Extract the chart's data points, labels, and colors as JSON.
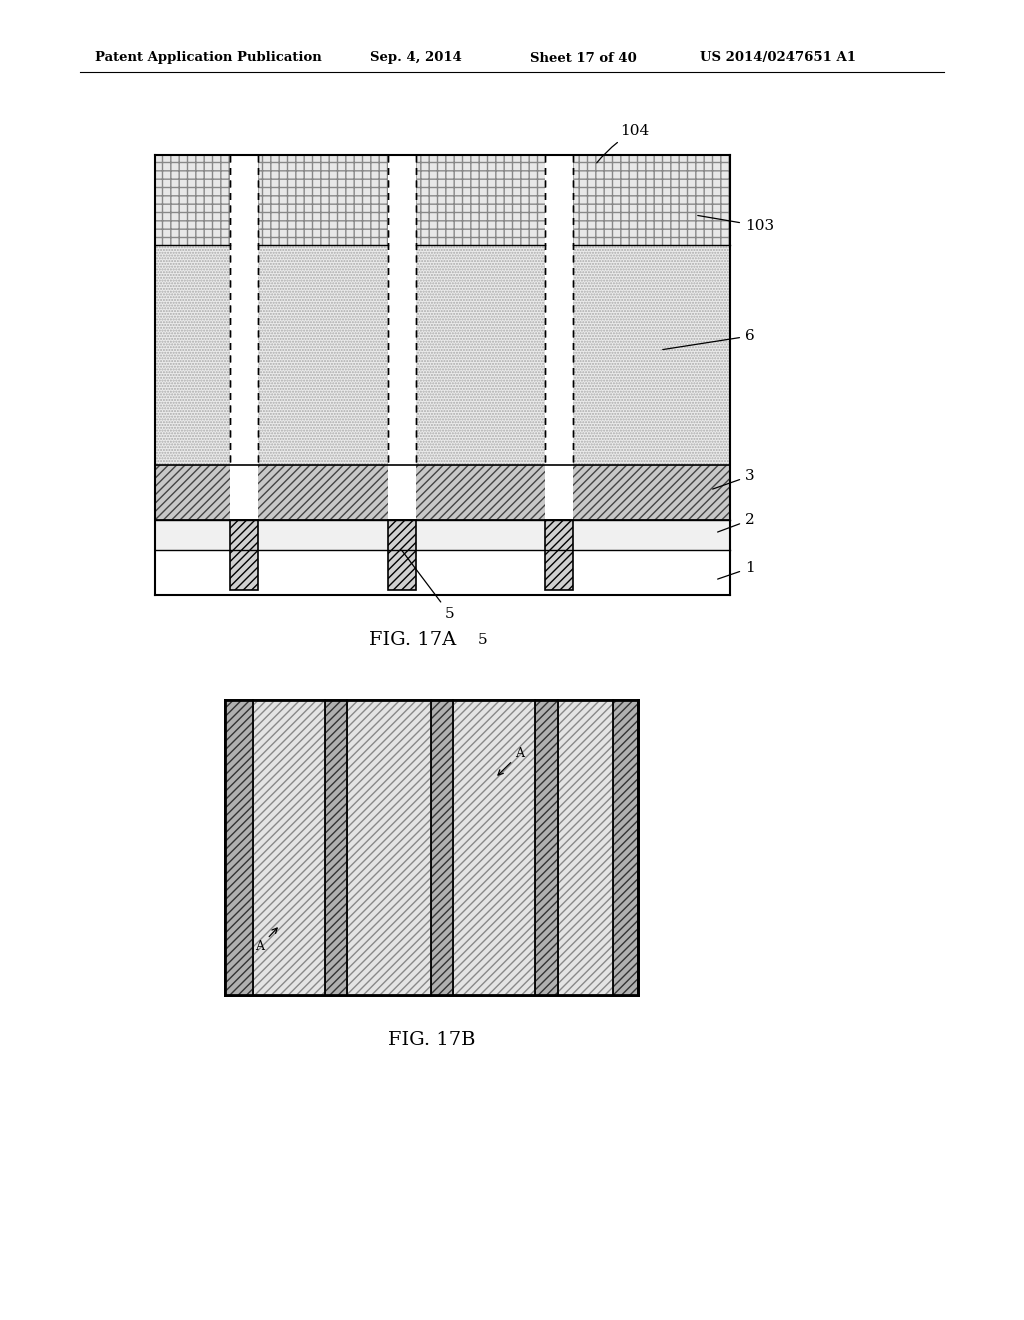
{
  "bg_color": "#ffffff",
  "header_text": "Patent Application Publication",
  "header_date": "Sep. 4, 2014",
  "header_sheet": "Sheet 17 of 40",
  "header_patent": "US 2014/0247651 A1",
  "fig17a_label": "FIG. 17A",
  "fig17b_label": "FIG. 17B",
  "label_5": "5",
  "label_104": "104",
  "label_103": "103",
  "label_6": "6",
  "label_3": "3",
  "label_2": "2",
  "label_1": "1"
}
